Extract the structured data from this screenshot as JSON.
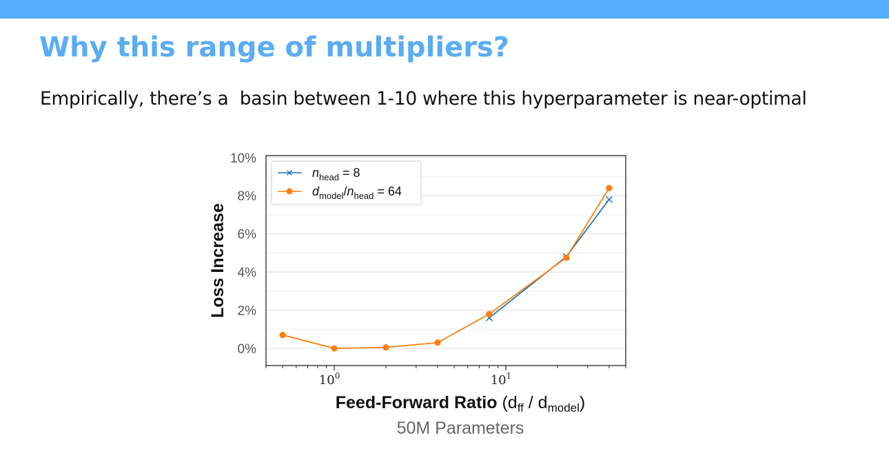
{
  "slide": {
    "title": "Why this range of multipliers?",
    "subtitle": "Empirically, there’s a  basin between 1-10 where this hyperparameter is near-optimal"
  },
  "chart_data": {
    "type": "line",
    "ylabel": "Loss Increase",
    "xlabel": {
      "bold": "Feed-Forward Ratio",
      "rest_open": " (d",
      "ff_sub": "ff",
      "rest_mid": " / d",
      "model_sub": "model",
      "rest_close": ")"
    },
    "caption": "50M Parameters",
    "x_scale": "log",
    "xlim": [
      0.4,
      50
    ],
    "ylim": [
      -0.9,
      10.1
    ],
    "y_ticks": [
      0,
      2,
      4,
      6,
      8,
      10
    ],
    "y_tick_labels": [
      "0%",
      "2%",
      "4%",
      "6%",
      "8%",
      "10%"
    ],
    "x_major_ticks": [
      {
        "x": 1,
        "base": "10",
        "exp": "0"
      },
      {
        "x": 10,
        "base": "10",
        "exp": "1"
      }
    ],
    "x_minor_ticks": [
      0.4,
      0.5,
      0.6,
      0.7,
      0.8,
      0.9,
      2,
      3,
      4,
      5,
      6,
      7,
      8,
      9,
      20,
      30,
      40,
      50
    ],
    "grid": "horizontal",
    "legend_position": "top-left",
    "series": [
      {
        "name_italic": "n",
        "name_sub": "head",
        "name_rest": " = 8",
        "color": "#1f77b4",
        "marker": "x",
        "x": [
          8,
          22.5,
          40
        ],
        "y": [
          1.6,
          4.8,
          7.8
        ]
      },
      {
        "name_italic": "d",
        "name_sub": "model",
        "name_mid": "/",
        "name_italic2": "n",
        "name_sub2": "head",
        "name_rest": " = 64",
        "color": "#ff7f0e",
        "marker": "o",
        "x": [
          0.5,
          1,
          2,
          4,
          8,
          22.5,
          40
        ],
        "y": [
          0.7,
          0.0,
          0.05,
          0.3,
          1.8,
          4.75,
          8.4
        ]
      }
    ]
  }
}
